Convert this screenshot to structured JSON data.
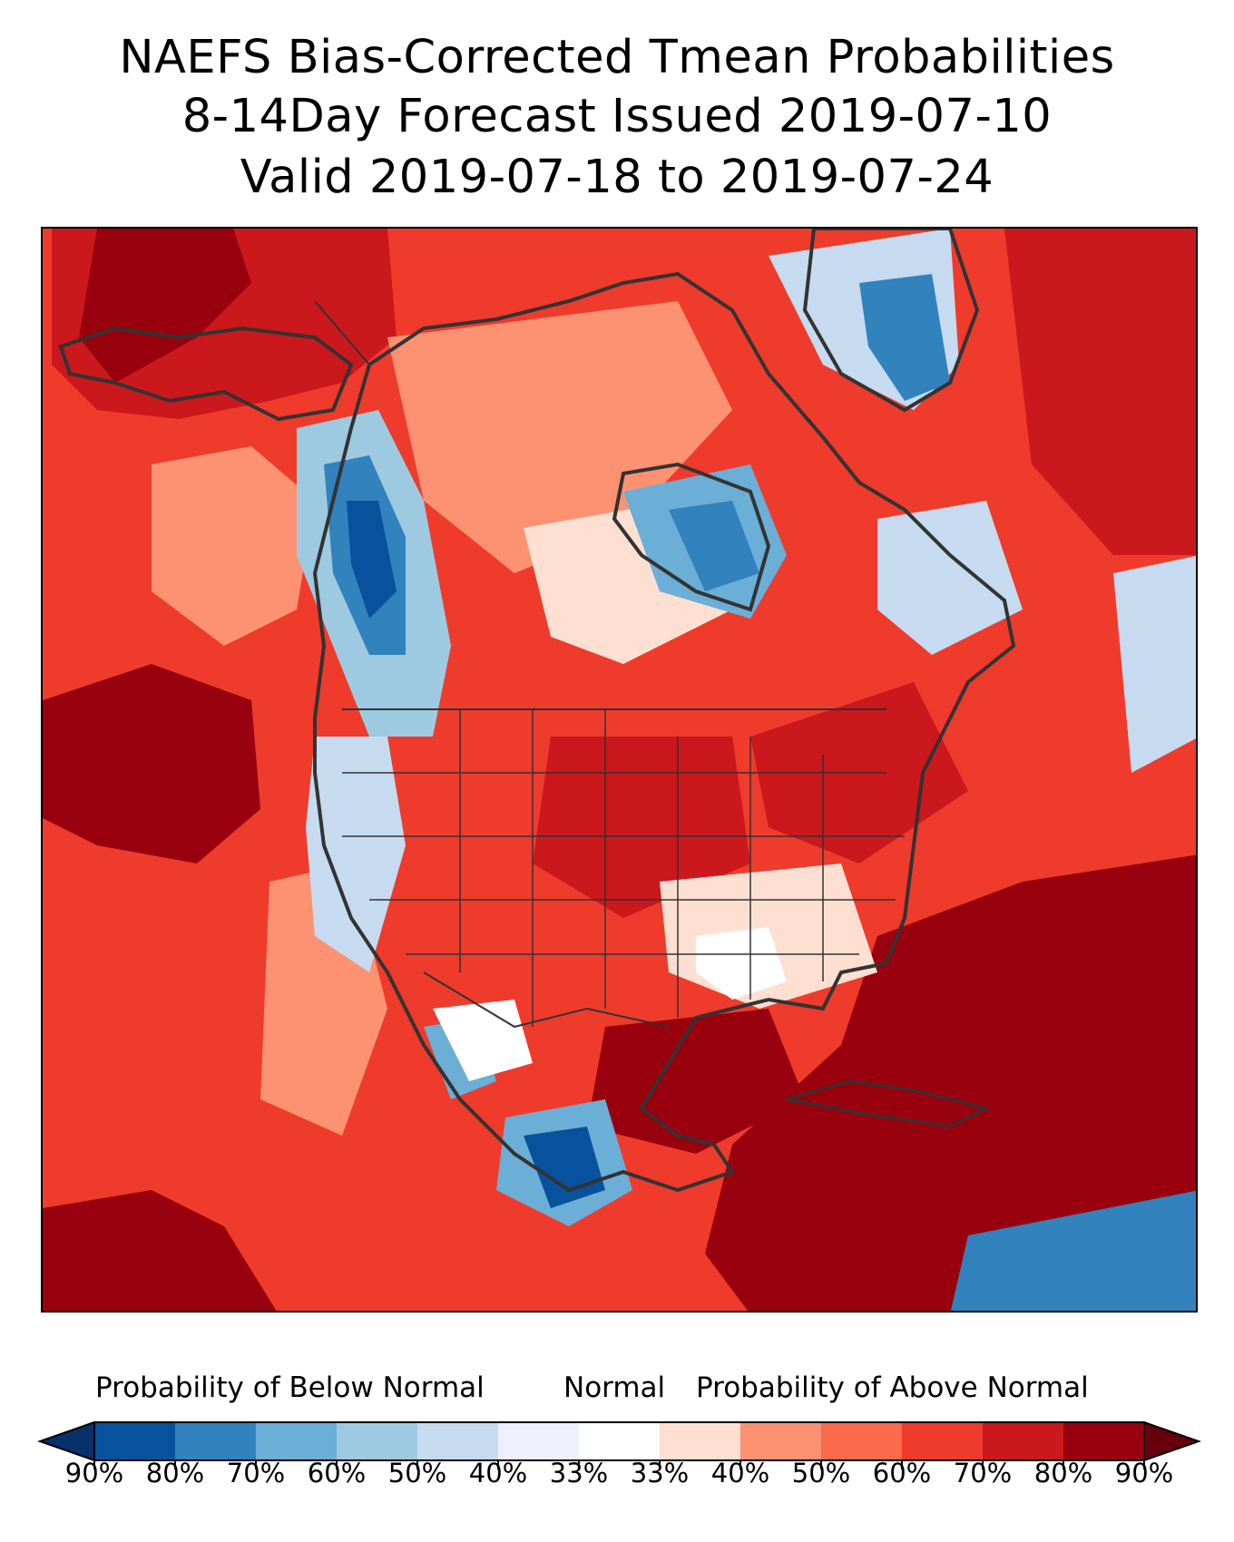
{
  "title": {
    "line1": "NAEFS Bias-Corrected Tmean Probabilities",
    "line2": "8-14Day Forecast Issued 2019-07-10",
    "line3": "Valid 2019-07-18 to 2019-07-24"
  },
  "legend": {
    "below_label": "Probability of Below Normal",
    "normal_label": "Normal",
    "above_label": "Probability of Above Normal",
    "colors": [
      "#08306b",
      "#08519c",
      "#3182bd",
      "#6baed6",
      "#9ecae1",
      "#c6dbef",
      "#eef0ff",
      "#ffffff",
      "#fee0d2",
      "#fc9272",
      "#fb6a4a",
      "#ef3b2c",
      "#cb181d",
      "#99000d",
      "#67000d"
    ],
    "ticks": [
      "90%",
      "80%",
      "70%",
      "60%",
      "50%",
      "40%",
      "33%",
      "33%",
      "40%",
      "50%",
      "60%",
      "70%",
      "80%",
      "90%"
    ]
  },
  "map": {
    "region": "North America",
    "colors": {
      "warm_dark": "#99000d",
      "warm_strong": "#cb181d",
      "warm_mid": "#ef3b2c",
      "warm_light": "#fc9272",
      "warm_pale": "#fee0d2",
      "cool_pale": "#c6dbef",
      "cool_light": "#9ecae1",
      "cool_mid": "#6baed6",
      "cool_strong": "#3182bd",
      "cool_dark": "#08519c",
      "coastline": "#333333"
    }
  }
}
